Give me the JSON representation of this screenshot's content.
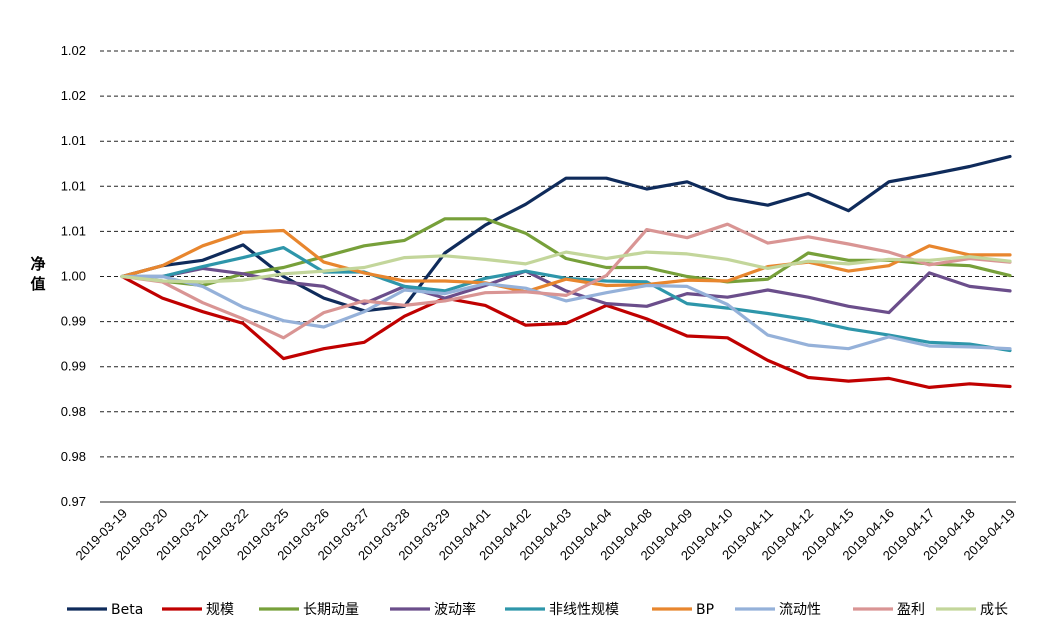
{
  "chart_data": {
    "type": "line",
    "title": "",
    "xlabel": "",
    "ylabel": "净值",
    "ylim": [
      0.975,
      1.025
    ],
    "yticks": [
      0.975,
      0.98,
      0.985,
      0.99,
      0.995,
      1.0,
      1.005,
      1.01,
      1.015,
      1.02,
      1.025
    ],
    "ytick_labels": [
      "0.97",
      "0.98",
      "0.98",
      "0.99",
      "0.99",
      "1.00",
      "1.01",
      "1.01",
      "1.01",
      "1.02",
      "1.02"
    ],
    "grid": true,
    "legend_position": "bottom",
    "categories": [
      "2019-03-19",
      "2019-03-20",
      "2019-03-21",
      "2019-03-22",
      "2019-03-25",
      "2019-03-26",
      "2019-03-27",
      "2019-03-28",
      "2019-03-29",
      "2019-04-01",
      "2019-04-02",
      "2019-04-03",
      "2019-04-04",
      "2019-04-08",
      "2019-04-09",
      "2019-04-10",
      "2019-04-11",
      "2019-04-12",
      "2019-04-15",
      "2019-04-16",
      "2019-04-17",
      "2019-04-18",
      "2019-04-19"
    ],
    "series": [
      {
        "name": "Beta",
        "color": "#0f2b5b",
        "values": [
          1.0,
          1.0012,
          1.0018,
          1.0035,
          1.0,
          0.9976,
          0.9962,
          0.9967,
          1.0026,
          1.0057,
          1.008,
          1.0109,
          1.0109,
          1.0097,
          1.0105,
          1.0087,
          1.0079,
          1.0092,
          1.0073,
          1.0105,
          1.0113,
          1.0122,
          1.0133
        ]
      },
      {
        "name": "规模",
        "color": "#c00000",
        "values": [
          1.0,
          0.9976,
          0.9961,
          0.9948,
          0.9909,
          0.992,
          0.9927,
          0.9956,
          0.9976,
          0.9968,
          0.9946,
          0.9948,
          0.9968,
          0.9953,
          0.9934,
          0.9932,
          0.9907,
          0.9888,
          0.9884,
          0.9887,
          0.9877,
          0.9881,
          0.9878
        ]
      },
      {
        "name": "长期动量",
        "color": "#77a03a",
        "values": [
          1.0,
          0.9995,
          0.999,
          1.0003,
          1.001,
          1.0022,
          1.0034,
          1.004,
          1.0064,
          1.0064,
          1.0048,
          1.002,
          1.001,
          1.001,
          1.0,
          0.9994,
          0.9997,
          1.0026,
          1.0018,
          1.0018,
          1.0014,
          1.0012,
          1.0001
        ]
      },
      {
        "name": "波动率",
        "color": "#6b4e8b",
        "values": [
          1.0,
          1.0,
          1.0009,
          1.0003,
          0.9994,
          0.9989,
          0.997,
          0.9989,
          0.9976,
          0.999,
          1.0006,
          0.9984,
          0.997,
          0.9967,
          0.9981,
          0.9977,
          0.9985,
          0.9977,
          0.9967,
          0.996,
          1.0004,
          0.9989,
          0.9984
        ]
      },
      {
        "name": "非线性规模",
        "color": "#2e96aa",
        "values": [
          1.0,
          1.0,
          1.0011,
          1.0021,
          1.0032,
          1.0005,
          1.0005,
          0.9989,
          0.9984,
          0.9998,
          1.0006,
          0.9998,
          0.9995,
          0.9994,
          0.997,
          0.9965,
          0.9959,
          0.9952,
          0.9942,
          0.9935,
          0.9927,
          0.9925,
          0.9918
        ]
      },
      {
        "name": "BP",
        "color": "#e8862e",
        "values": [
          1.0,
          1.0012,
          1.0034,
          1.0049,
          1.0051,
          1.0016,
          1.0004,
          0.9995,
          0.9995,
          0.9993,
          0.9983,
          0.9997,
          0.999,
          0.9991,
          0.9996,
          0.9995,
          1.0011,
          1.0016,
          1.0006,
          1.0012,
          1.0034,
          1.0024,
          1.0024
        ]
      },
      {
        "name": "流动性",
        "color": "#95b1d9",
        "values": [
          1.0,
          1.0,
          0.9989,
          0.9966,
          0.9951,
          0.9944,
          0.9961,
          0.9985,
          0.9981,
          0.9992,
          0.9987,
          0.9973,
          0.9982,
          0.999,
          0.9989,
          0.9969,
          0.9935,
          0.9924,
          0.992,
          0.9933,
          0.9923,
          0.9922,
          0.992
        ]
      },
      {
        "name": "盈利",
        "color": "#d99594",
        "values": [
          1.0,
          0.9994,
          0.9971,
          0.9953,
          0.9932,
          0.996,
          0.9973,
          0.9968,
          0.9973,
          0.9982,
          0.9983,
          0.9979,
          1.0001,
          1.0052,
          1.0043,
          1.0058,
          1.0037,
          1.0044,
          1.0036,
          1.0027,
          1.0013,
          1.002,
          1.0016
        ]
      },
      {
        "name": "成长",
        "color": "#c3d69b",
        "values": [
          1.0,
          0.9995,
          0.9994,
          0.9996,
          1.0003,
          1.0006,
          1.001,
          1.0021,
          1.0023,
          1.0019,
          1.0014,
          1.0027,
          1.002,
          1.0027,
          1.0025,
          1.0019,
          1.0009,
          1.0017,
          1.0014,
          1.0019,
          1.0018,
          1.0022,
          1.0017
        ]
      }
    ]
  }
}
